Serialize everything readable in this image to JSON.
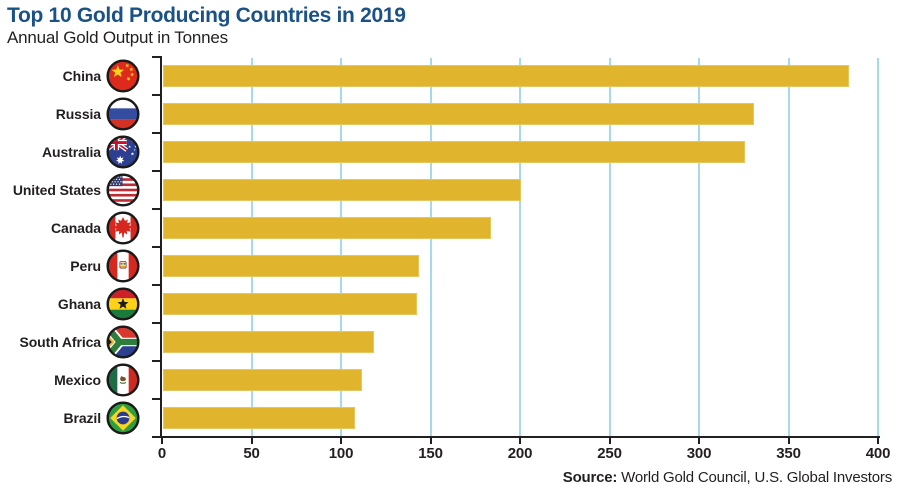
{
  "header": {
    "title": "Top 10 Gold Producing Countries in 2019",
    "subtitle": "Annual Gold Output in Tonnes"
  },
  "footer": {
    "source_label": "Source:",
    "source_text": " World Gold Council, U.S. Global Investors"
  },
  "colors": {
    "title_blue": "#1A5288",
    "bar_gold": "#E0B42C",
    "gridline_blue": "#A6DAEB",
    "axis_black": "#231F20",
    "text_black": "#231F20"
  },
  "chart_data": {
    "type": "bar",
    "orientation": "horizontal",
    "title": "Top 10 Gold Producing Countries in 2019",
    "subtitle": "Annual Gold Output in Tonnes",
    "unit": "tonnes",
    "categories": [
      "China",
      "Russia",
      "Australia",
      "United States",
      "Canada",
      "Peru",
      "Ghana",
      "South Africa",
      "Mexico",
      "Brazil"
    ],
    "values": [
      383,
      330,
      325,
      200,
      183,
      143,
      142,
      118,
      111,
      107
    ],
    "flags": [
      "china",
      "russia",
      "australia",
      "united-states",
      "canada",
      "peru",
      "ghana",
      "south-africa",
      "mexico",
      "brazil"
    ],
    "xlim": [
      0,
      400
    ],
    "xticks": [
      0,
      50,
      100,
      150,
      200,
      250,
      300,
      350,
      400
    ],
    "xlabel": "",
    "ylabel": "",
    "grid": "vertical",
    "legend": "none",
    "source": "World Gold Council, U.S. Global Investors"
  }
}
